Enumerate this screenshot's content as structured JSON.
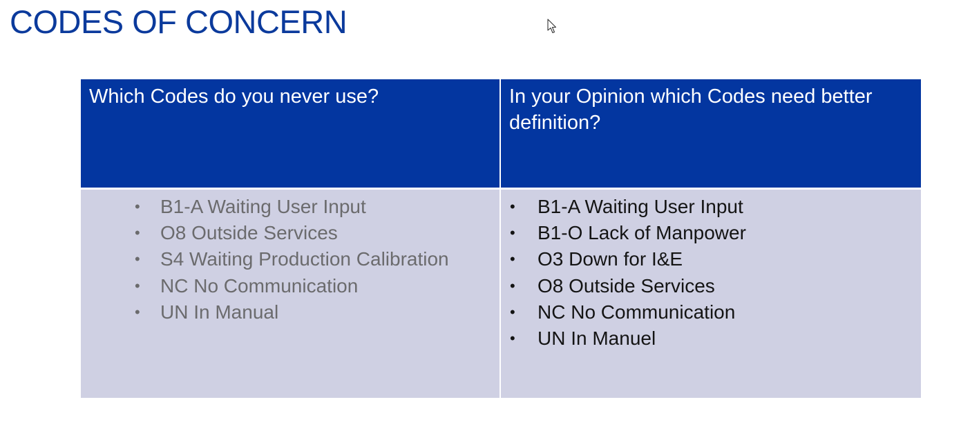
{
  "slide": {
    "title": "CODES OF CONCERN"
  },
  "table": {
    "headers": [
      "Which Codes do you never use?",
      "In your Opinion which Codes need better definition?"
    ],
    "columns": [
      {
        "items": [
          "B1-A Waiting User Input",
          "O8 Outside Services",
          "S4 Waiting Production Calibration",
          "NC No Communication",
          "UN In Manual"
        ]
      },
      {
        "items": [
          "B1-A Waiting User Input",
          "B1-O Lack of Manpower",
          "O3 Down for I&E",
          "O8 Outside Services",
          "NC No Communication",
          "UN In Manuel"
        ]
      }
    ]
  },
  "glyphs": {
    "bullet": "•"
  },
  "colors": {
    "title": "#0b3a9c",
    "header_background": "#0336a0",
    "header_text": "#ffffff",
    "body_background": "#cfd0e3",
    "left_list_text": "#6b6b6d",
    "right_list_text": "#141414"
  },
  "icons": {
    "cursor": "mouse-pointer-icon"
  }
}
